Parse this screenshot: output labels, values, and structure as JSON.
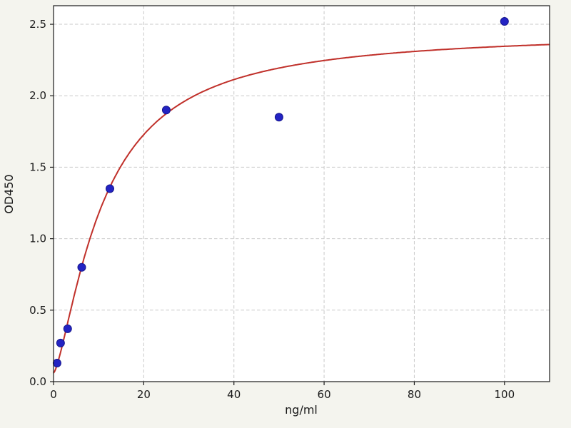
{
  "chart_data": {
    "type": "scatter",
    "title": "",
    "xlabel": "ng/ml",
    "ylabel": "OD450",
    "xlim": [
      0,
      110
    ],
    "ylim": [
      0,
      2.63
    ],
    "xticks": [
      0,
      20,
      40,
      60,
      80,
      100
    ],
    "xtick_labels": [
      "0",
      "20",
      "40",
      "60",
      "80",
      "100"
    ],
    "yticks": [
      0.0,
      0.5,
      1.0,
      1.5,
      2.0,
      2.5
    ],
    "ytick_labels": [
      "0.0",
      "0.5",
      "1.0",
      "1.5",
      "2.0",
      "2.5"
    ],
    "grid": true,
    "legend": "none",
    "series": [
      {
        "name": "standard-points",
        "type": "scatter",
        "marker": "circle",
        "color": "#2323c3",
        "edge_color": "#15158c",
        "x": [
          0.78,
          1.56,
          3.13,
          6.25,
          12.5,
          25,
          50,
          100
        ],
        "y": [
          0.13,
          0.27,
          0.37,
          0.8,
          1.35,
          1.9,
          1.85,
          2.52
        ]
      },
      {
        "name": "4pl-fit-curve",
        "type": "line",
        "color": "#c0302a",
        "fit": {
          "model": "4PL",
          "a": 0.06,
          "b": 1.4,
          "c": 11,
          "d": 2.45
        },
        "x_range": [
          0,
          110
        ]
      }
    ],
    "colors": {
      "background": "#f4f4ee",
      "plot_background": "#ffffff",
      "grid": "#c9c9c9",
      "axis": "#1a1a1a"
    }
  }
}
